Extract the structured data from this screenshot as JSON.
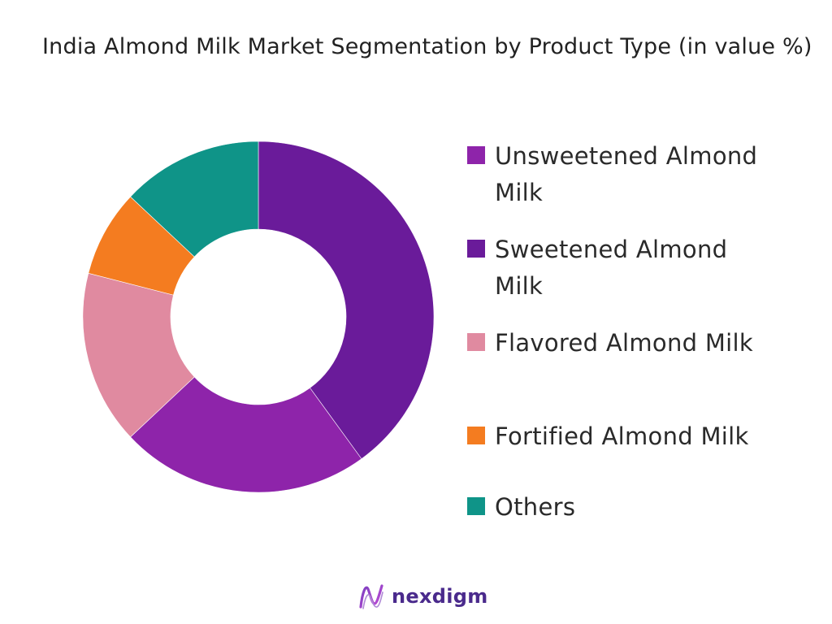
{
  "chart_data": {
    "type": "pie",
    "title": "India Almond Milk Market Segmentation by Product Type (in value %)",
    "donut": true,
    "legend_position": "right",
    "start_angle_deg": 0,
    "direction": "clockwise",
    "slices": [
      {
        "label": "Sweetened Almond Milk",
        "value": 40,
        "color": "#6a1b9a"
      },
      {
        "label": "Unsweetened Almond Milk",
        "value": 23,
        "color": "#8e24aa"
      },
      {
        "label": "Flavored Almond Milk",
        "value": 16,
        "color": "#e08aa0"
      },
      {
        "label": "Fortified Almond Milk",
        "value": 8,
        "color": "#f47c20"
      },
      {
        "label": "Others",
        "value": 13,
        "color": "#0f9488"
      }
    ],
    "legend": [
      {
        "label": "Unsweetened Almond Milk",
        "color": "#8e24aa"
      },
      {
        "label": "Sweetened Almond Milk",
        "color": "#6a1b9a"
      },
      {
        "label": "Flavored Almond Milk",
        "color": "#e08aa0"
      },
      {
        "label": "Fortified Almond Milk",
        "color": "#f47c20"
      },
      {
        "label": "Others",
        "color": "#0f9488"
      }
    ]
  },
  "branding": {
    "name": "nexdigm",
    "logo_icon": "nexdigm-logo-icon",
    "brand_color": "#4a2a8c"
  }
}
